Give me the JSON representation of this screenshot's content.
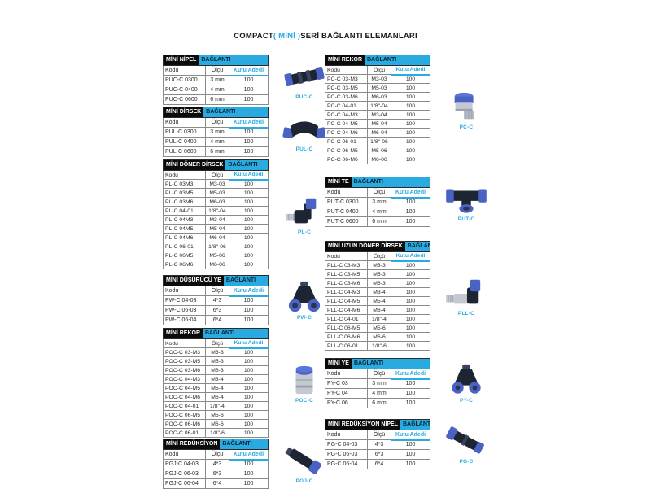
{
  "title": {
    "prefix": "COMPACT",
    "highlight": "( MİNİ )",
    "suffix": "SERİ BAĞLANTI ELEMANLARI"
  },
  "suffix_label": "BAĞLANTI",
  "table_columns": [
    "Kodu",
    "Ölçü",
    "Kutu Adedi"
  ],
  "colors": {
    "accent": "#29abe2",
    "bar_bg": "#000000",
    "label": "#29abe2"
  },
  "left_tables": [
    {
      "name": "MİNİ NİPEL",
      "product": "PUC-C",
      "icon": "straight-union-icon",
      "rows": [
        [
          "PUC-C 0300",
          "3 mm",
          "100"
        ],
        [
          "PUC-C 0400",
          "4 mm",
          "100"
        ],
        [
          "PUC-C 0600",
          "6 mm",
          "100"
        ]
      ]
    },
    {
      "name": "MİNİ DİRSEK",
      "product": "PUL-C",
      "icon": "elbow-union-icon",
      "rows": [
        [
          "PUL-C 0300",
          "3 mm",
          "100"
        ],
        [
          "PUL-C 0400",
          "4 mm",
          "100"
        ],
        [
          "PUL-C 0600",
          "6 mm",
          "100"
        ]
      ]
    },
    {
      "name": "MİNİ DÖNER DİRSEK",
      "product": "PL-C",
      "icon": "swivel-elbow-icon",
      "rows": [
        [
          "PL-C 03M3",
          "M3-03",
          "100"
        ],
        [
          "PL-C 03M5",
          "M5-03",
          "100"
        ],
        [
          "PL-C 03M6",
          "M6-03",
          "100"
        ],
        [
          "PL-C 04-01",
          "1/8\"-04",
          "100"
        ],
        [
          "PL-C 04M3",
          "M3-04",
          "100"
        ],
        [
          "PL-C 04M5",
          "M5-04",
          "100"
        ],
        [
          "PL-C 04M6",
          "M6-04",
          "100"
        ],
        [
          "PL-C 06-01",
          "1/8\"-06",
          "100"
        ],
        [
          "PL-C 06M5",
          "M5-06",
          "100"
        ],
        [
          "PL-C 06M6",
          "M6-06",
          "100"
        ]
      ]
    },
    {
      "name": "MİNİ DÜŞÜRÜCÜ YE",
      "product": "PW-C",
      "icon": "y-reducer-icon",
      "rows": [
        [
          "PW-C 04-03",
          "4*3",
          "100"
        ],
        [
          "PW-C 06-03",
          "6*3",
          "100"
        ],
        [
          "PW-C 06-04",
          "6*4",
          "100"
        ]
      ]
    },
    {
      "name": "MİNİ REKOR",
      "product": "POC-C",
      "icon": "round-body-icon",
      "rows": [
        [
          "POC-C 03-M3",
          "M3-3",
          "100"
        ],
        [
          "POC-C 03-M5",
          "M5-3",
          "100"
        ],
        [
          "POC-C 03-M6",
          "M6-3",
          "100"
        ],
        [
          "POC-C 04-M3",
          "M3-4",
          "100"
        ],
        [
          "POC-C 04-M5",
          "M5-4",
          "100"
        ],
        [
          "POC-C 04-M6",
          "M6-4",
          "100"
        ],
        [
          "POC-C 04-01",
          "1/8\"-4",
          "100"
        ],
        [
          "POC-C 06-M5",
          "M5-6",
          "100"
        ],
        [
          "POC-C 06-M6",
          "M6-6",
          "100"
        ],
        [
          "POC-C 06-01",
          "1/8\"-6",
          "100"
        ]
      ]
    },
    {
      "name": "MİNİ REDÜKSİYON",
      "product": "PGJ-C",
      "icon": "reducer-stem-icon",
      "rows": [
        [
          "PGJ-C 04-03",
          "4*3",
          "100"
        ],
        [
          "PGJ-C 06-03",
          "6*3",
          "100"
        ],
        [
          "PGJ-C 06-04",
          "6*4",
          "100"
        ]
      ]
    }
  ],
  "right_tables": [
    {
      "name": "MİNİ REKOR",
      "product": "PC-C",
      "icon": "male-straight-icon",
      "rows": [
        [
          "PC-C 03-M3",
          "M3-03",
          "100"
        ],
        [
          "PC-C 03-M5",
          "M5-03",
          "100"
        ],
        [
          "PC-C 03-M6",
          "M6-03",
          "100"
        ],
        [
          "PC-C 04-01",
          "1/8\"-04",
          "100"
        ],
        [
          "PC-C 04-M3",
          "M3-04",
          "100"
        ],
        [
          "PC-C 04-M5",
          "M5-04",
          "100"
        ],
        [
          "PC-C 04-M6",
          "M6-04",
          "100"
        ],
        [
          "PC-C 06-01",
          "1/8\"-06",
          "100"
        ],
        [
          "PC-C 06-M5",
          "M5-06",
          "100"
        ],
        [
          "PC-C 06-M6",
          "M6-06",
          "100"
        ]
      ]
    },
    {
      "name": "MİNİ TE",
      "product": "PUT-C",
      "icon": "tee-union-icon",
      "rows": [
        [
          "PUT-C 0300",
          "3 mm",
          "100"
        ],
        [
          "PUT-C 0400",
          "4 mm",
          "100"
        ],
        [
          "PUT-C 0600",
          "6 mm",
          "100"
        ]
      ]
    },
    {
      "name": "MİNİ UZUN DÖNER DİRSEK",
      "product": "PLL-C",
      "icon": "long-swivel-elbow-icon",
      "rows": [
        [
          "PLL-C 03-M3",
          "M3-3",
          "100"
        ],
        [
          "PLL-C 03-M5",
          "M5-3",
          "100"
        ],
        [
          "PLL-C 03-M6",
          "M6-3",
          "100"
        ],
        [
          "PLL-C 04-M3",
          "M3-4",
          "100"
        ],
        [
          "PLL-C 04-M5",
          "M5-4",
          "100"
        ],
        [
          "PLL-C 04-M6",
          "M6-4",
          "100"
        ],
        [
          "PLL-C 04-01",
          "1/8\"-4",
          "100"
        ],
        [
          "PLL-C 06-M5",
          "M5-6",
          "100"
        ],
        [
          "PLL-C 06-M6",
          "M6-6",
          "100"
        ],
        [
          "PLL-C 06-01",
          "1/8\"-6",
          "100"
        ]
      ]
    },
    {
      "name": "MİNİ YE",
      "product": "PY-C",
      "icon": "y-union-icon",
      "rows": [
        [
          "PY-C 03",
          "3 mm",
          "100"
        ],
        [
          "PY-C 04",
          "4 mm",
          "100"
        ],
        [
          "PY-C 06",
          "6 mm",
          "100"
        ]
      ]
    },
    {
      "name": "MİNİ REDÜKSİYON NİPEL",
      "product": "PG-C",
      "icon": "reducer-union-icon",
      "rows": [
        [
          "PG-C 04-03",
          "4*3",
          "100"
        ],
        [
          "PG-C 06-03",
          "6*3",
          "100"
        ],
        [
          "PG-C 06-04",
          "6*4",
          "100"
        ]
      ]
    }
  ]
}
